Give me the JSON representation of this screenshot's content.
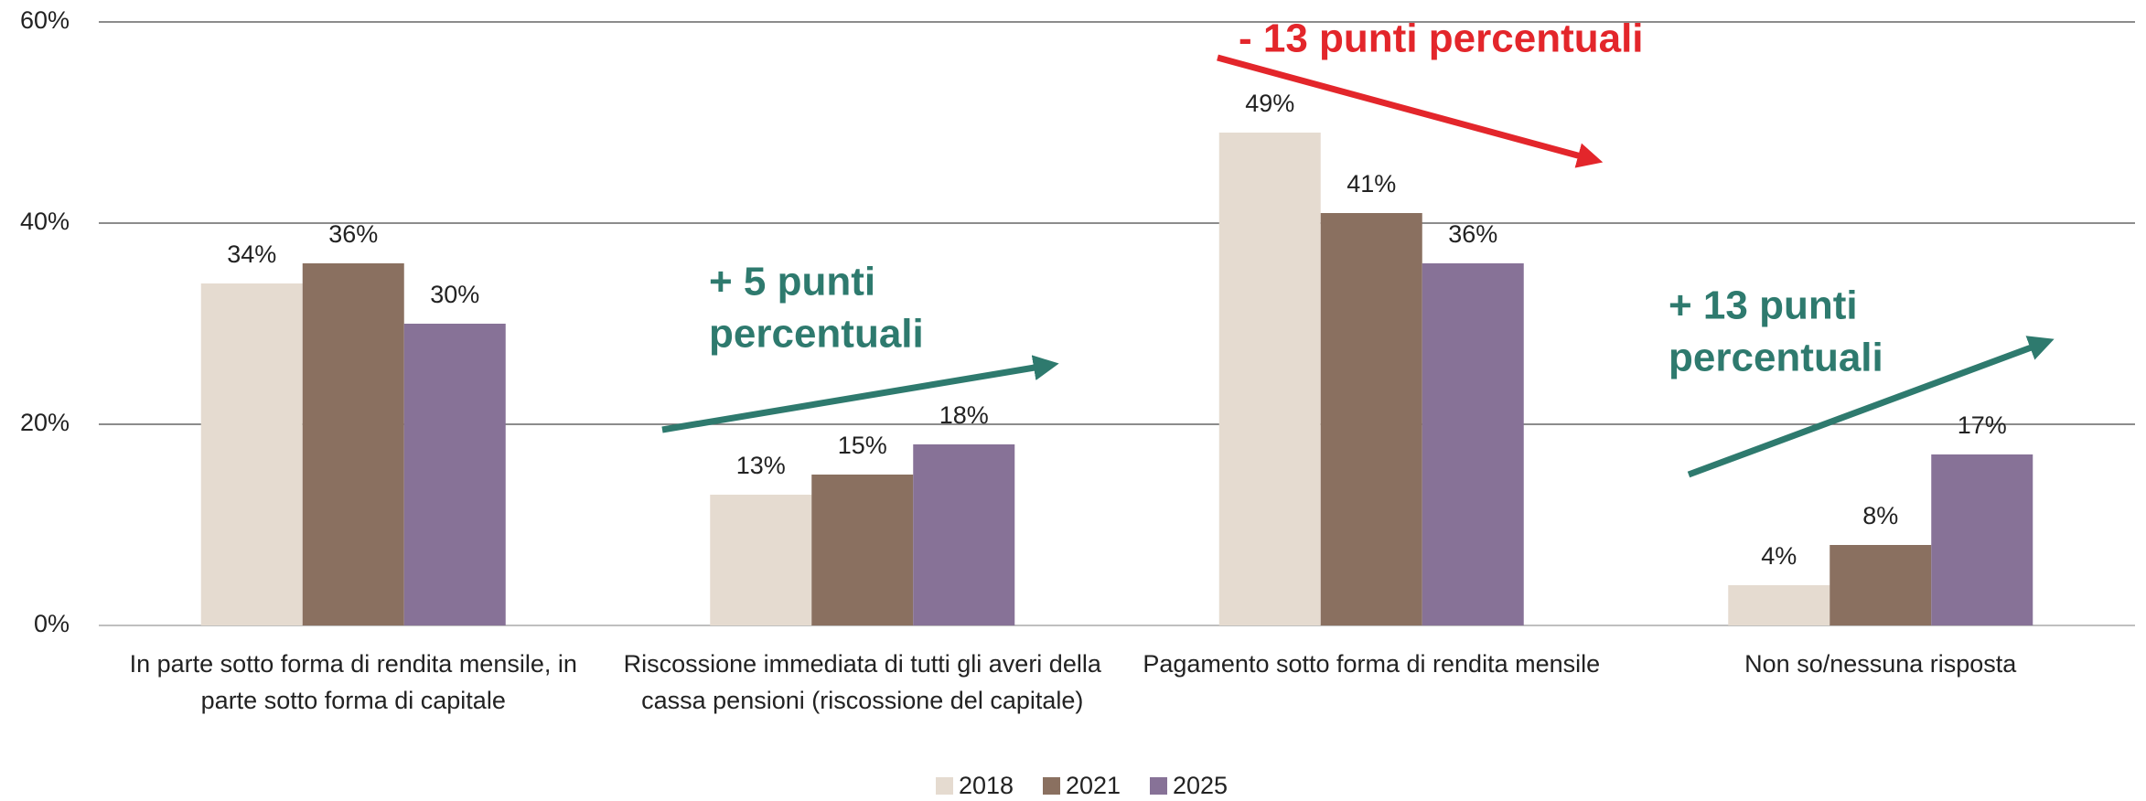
{
  "chart_data": {
    "type": "bar",
    "categories": [
      "In parte sotto forma di rendita mensile, in parte sotto forma di capitale",
      "Riscossione immediata di tutti gli averi della cassa pensioni (riscossione del capitale)",
      "Pagamento sotto forma di rendita mensile",
      "Non so/nessuna risposta"
    ],
    "series": [
      {
        "name": "2018",
        "color": "#e5dbd0",
        "values": [
          34,
          13,
          49,
          4
        ],
        "value_labels": [
          "34%",
          "13%",
          "49%",
          "4%"
        ]
      },
      {
        "name": "2021",
        "color": "#8a7060",
        "values": [
          36,
          15,
          41,
          8
        ],
        "value_labels": [
          "36%",
          "15%",
          "41%",
          "8%"
        ]
      },
      {
        "name": "2025",
        "color": "#877297",
        "values": [
          30,
          18,
          36,
          17
        ],
        "value_labels": [
          "30%",
          "18%",
          "36%",
          "17%"
        ]
      }
    ],
    "ylim": [
      0,
      60
    ],
    "yticks": [
      {
        "value": 0,
        "label": "0%"
      },
      {
        "value": 20,
        "label": "20%"
      },
      {
        "value": 40,
        "label": "40%"
      },
      {
        "value": 60,
        "label": "60%"
      }
    ],
    "grid": true,
    "legend": "bottom",
    "annotations": [
      {
        "lines": [
          "- 13 punti percentuali"
        ],
        "color": "#e3262b"
      },
      {
        "lines": [
          "+ 5 punti",
          "percentuali"
        ],
        "color": "#2e7a6e"
      },
      {
        "lines": [
          "+ 13 punti",
          "percentuali"
        ],
        "color": "#2e7a6e"
      }
    ]
  }
}
